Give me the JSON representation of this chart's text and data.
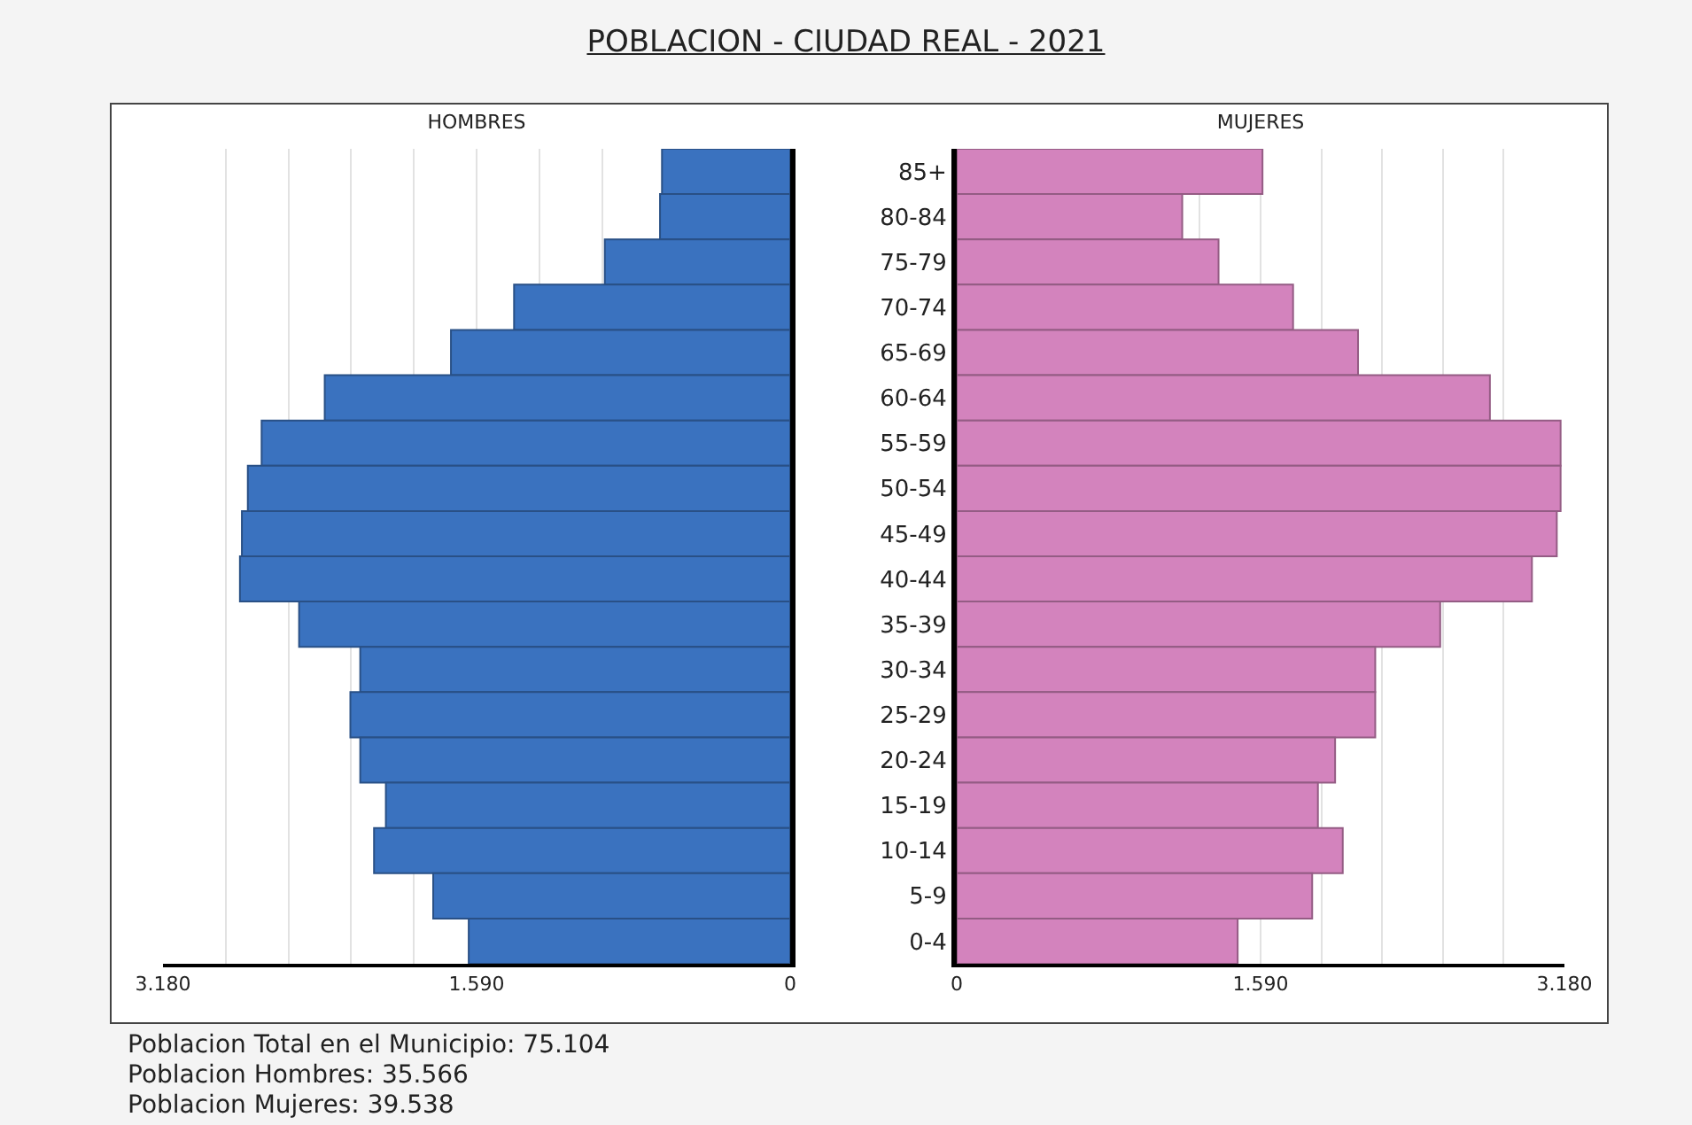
{
  "chart_data": [
    {
      "type": "bar",
      "orientation": "horizontal",
      "title": "POBLACION - CIUDAD REAL - 2021",
      "subtitle": "HOMBRES",
      "categories": [
        null,
        null,
        null,
        null,
        null,
        null,
        null,
        null,
        null,
        null,
        null,
        null,
        null,
        null,
        null,
        null,
        null,
        null
      ],
      "values": [
        650,
        660,
        940,
        1400,
        1720,
        2360,
        2680,
        2750,
        2780,
        2790,
        2490,
        2180,
        2230,
        2180,
        2050,
        2110,
        1810,
        1630
      ],
      "color": "#3a72bf",
      "xlim": [
        3180,
        0
      ],
      "xticks": [
        {
          "value": 3180,
          "label": "3.180"
        },
        {
          "value": 2862,
          "label": null
        },
        {
          "value": 2544,
          "label": null
        },
        {
          "value": 2226,
          "label": null
        },
        {
          "value": 1908,
          "label": null
        },
        {
          "value": 1590,
          "label": "1.590"
        },
        {
          "value": 1272,
          "label": null
        },
        {
          "value": 954,
          "label": null
        },
        0
      ],
      "grid": "x",
      "annotations": [
        "Poblacion Total en el Municipio: 75.104",
        "Poblacion Hombres: 35.566",
        "Poblacion Mujeres: 39.538"
      ]
    },
    {
      "type": "bar",
      "orientation": "horizontal",
      "title": "MUJERES",
      "categories": [
        "85+",
        "80-84",
        "75-79",
        "70-74",
        "65-69",
        "60-64",
        "55-59",
        "50-54",
        "45-49",
        "40-44",
        "35-39",
        "30-34",
        "25-29",
        "20-24",
        "15-19",
        "10-14",
        "5-9",
        "0-4"
      ],
      "values": [
        1600,
        1180,
        1370,
        1760,
        2100,
        2790,
        3160,
        3160,
        3140,
        3010,
        2530,
        2190,
        2190,
        1980,
        1890,
        2020,
        1860,
        1470
      ],
      "color": "#d383bd",
      "xlim": [
        0,
        3180
      ],
      "xticks": [
        0,
        {
          "value": 1272,
          "label": null
        },
        {
          "value": 1590,
          "label": "1.590"
        },
        {
          "value": 1908,
          "label": null
        },
        {
          "value": 2226,
          "label": null
        },
        {
          "value": 2544,
          "label": null
        },
        {
          "value": 2862,
          "label": null
        },
        {
          "value": 3180,
          "label": "3.180"
        }
      ],
      "grid": "x"
    }
  ]
}
